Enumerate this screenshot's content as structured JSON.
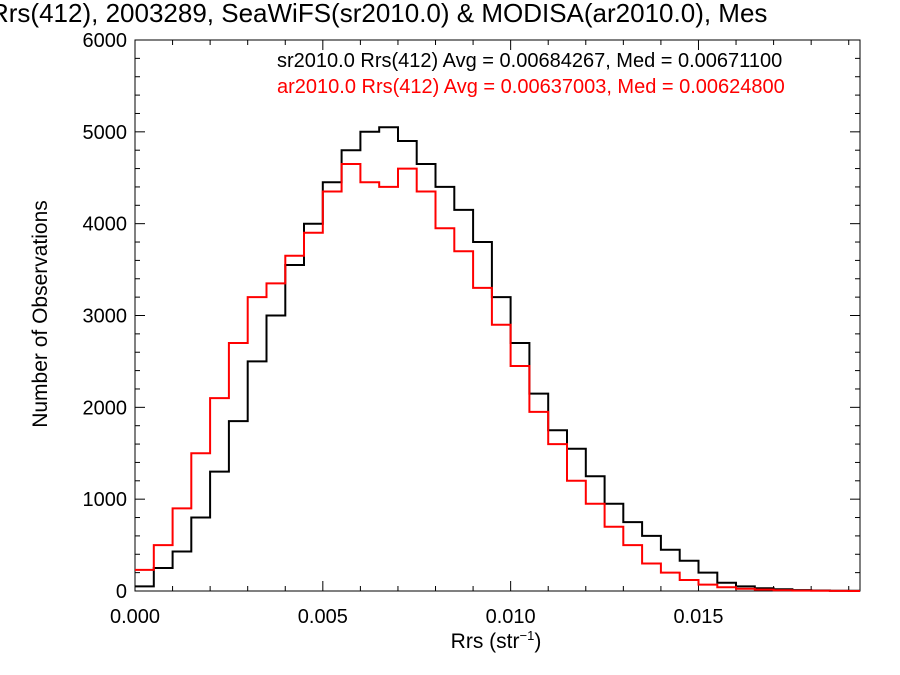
{
  "title": "Rrs(412), 2003289, SeaWiFS(sr2010.0) & MODISA(ar2010.0), Mes",
  "ylabel": "Number of Observations",
  "xlabel": {
    "text": "Rrs (str",
    "exponent": "−1",
    "close": ")"
  },
  "legend": [
    {
      "text": "sr2010.0 Rrs(412) Avg = 0.00684267, Med = 0.00671100",
      "color": "#000000"
    },
    {
      "text": "ar2010.0 Rrs(412) Avg = 0.00637003, Med = 0.00624800",
      "color": "#ff0000"
    }
  ],
  "chart_data": {
    "type": "line",
    "title": "Rrs(412), 2003289, SeaWiFS(sr2010.0) & MODISA(ar2010.0), Mes",
    "xlabel": "Rrs (str⁻¹)",
    "ylabel": "Number of Observations",
    "xlim": [
      0.0,
      0.0193
    ],
    "ylim": [
      0,
      6000
    ],
    "x_ticks": [
      "0.000",
      "0.005",
      "0.010",
      "0.015"
    ],
    "y_ticks": [
      "0",
      "1000",
      "2000",
      "3000",
      "4000",
      "5000",
      "6000"
    ],
    "grid": false,
    "legend_position": "top-right",
    "series": [
      {
        "name": "sr2010.0 Rrs(412) Avg = 0.00684267, Med = 0.00671100",
        "color": "#000000",
        "x": [
          0.0,
          0.0005,
          0.001,
          0.0015,
          0.002,
          0.0025,
          0.003,
          0.0035,
          0.004,
          0.0045,
          0.005,
          0.0055,
          0.006,
          0.0065,
          0.007,
          0.0075,
          0.008,
          0.0085,
          0.009,
          0.0095,
          0.01,
          0.0105,
          0.011,
          0.0115,
          0.012,
          0.0125,
          0.013,
          0.0135,
          0.014,
          0.0145,
          0.015,
          0.0155,
          0.016,
          0.0165,
          0.017,
          0.0175,
          0.018,
          0.0185,
          0.019
        ],
        "y": [
          50,
          250,
          430,
          800,
          1300,
          1850,
          2500,
          3000,
          3550,
          4000,
          4450,
          4800,
          5000,
          5050,
          4900,
          4650,
          4400,
          4150,
          3800,
          3200,
          2700,
          2150,
          1750,
          1550,
          1250,
          950,
          750,
          600,
          450,
          330,
          200,
          90,
          50,
          30,
          20,
          10,
          5,
          3,
          2
        ]
      },
      {
        "name": "ar2010.0 Rrs(412) Avg = 0.00637003, Med = 0.00624800",
        "color": "#ff0000",
        "x": [
          0.0,
          0.0005,
          0.001,
          0.0015,
          0.002,
          0.0025,
          0.003,
          0.0035,
          0.004,
          0.0045,
          0.005,
          0.0055,
          0.006,
          0.0065,
          0.007,
          0.0075,
          0.008,
          0.0085,
          0.009,
          0.0095,
          0.01,
          0.0105,
          0.011,
          0.0115,
          0.012,
          0.0125,
          0.013,
          0.0135,
          0.014,
          0.0145,
          0.015,
          0.0155,
          0.016,
          0.0165,
          0.017,
          0.0175,
          0.018,
          0.0185,
          0.019
        ],
        "y": [
          230,
          500,
          900,
          1500,
          2100,
          2700,
          3200,
          3350,
          3650,
          3900,
          4350,
          4650,
          4450,
          4400,
          4600,
          4350,
          3950,
          3700,
          3300,
          2900,
          2450,
          1950,
          1600,
          1200,
          950,
          700,
          500,
          300,
          200,
          120,
          70,
          40,
          25,
          15,
          8,
          4,
          2,
          1,
          0
        ]
      }
    ]
  }
}
